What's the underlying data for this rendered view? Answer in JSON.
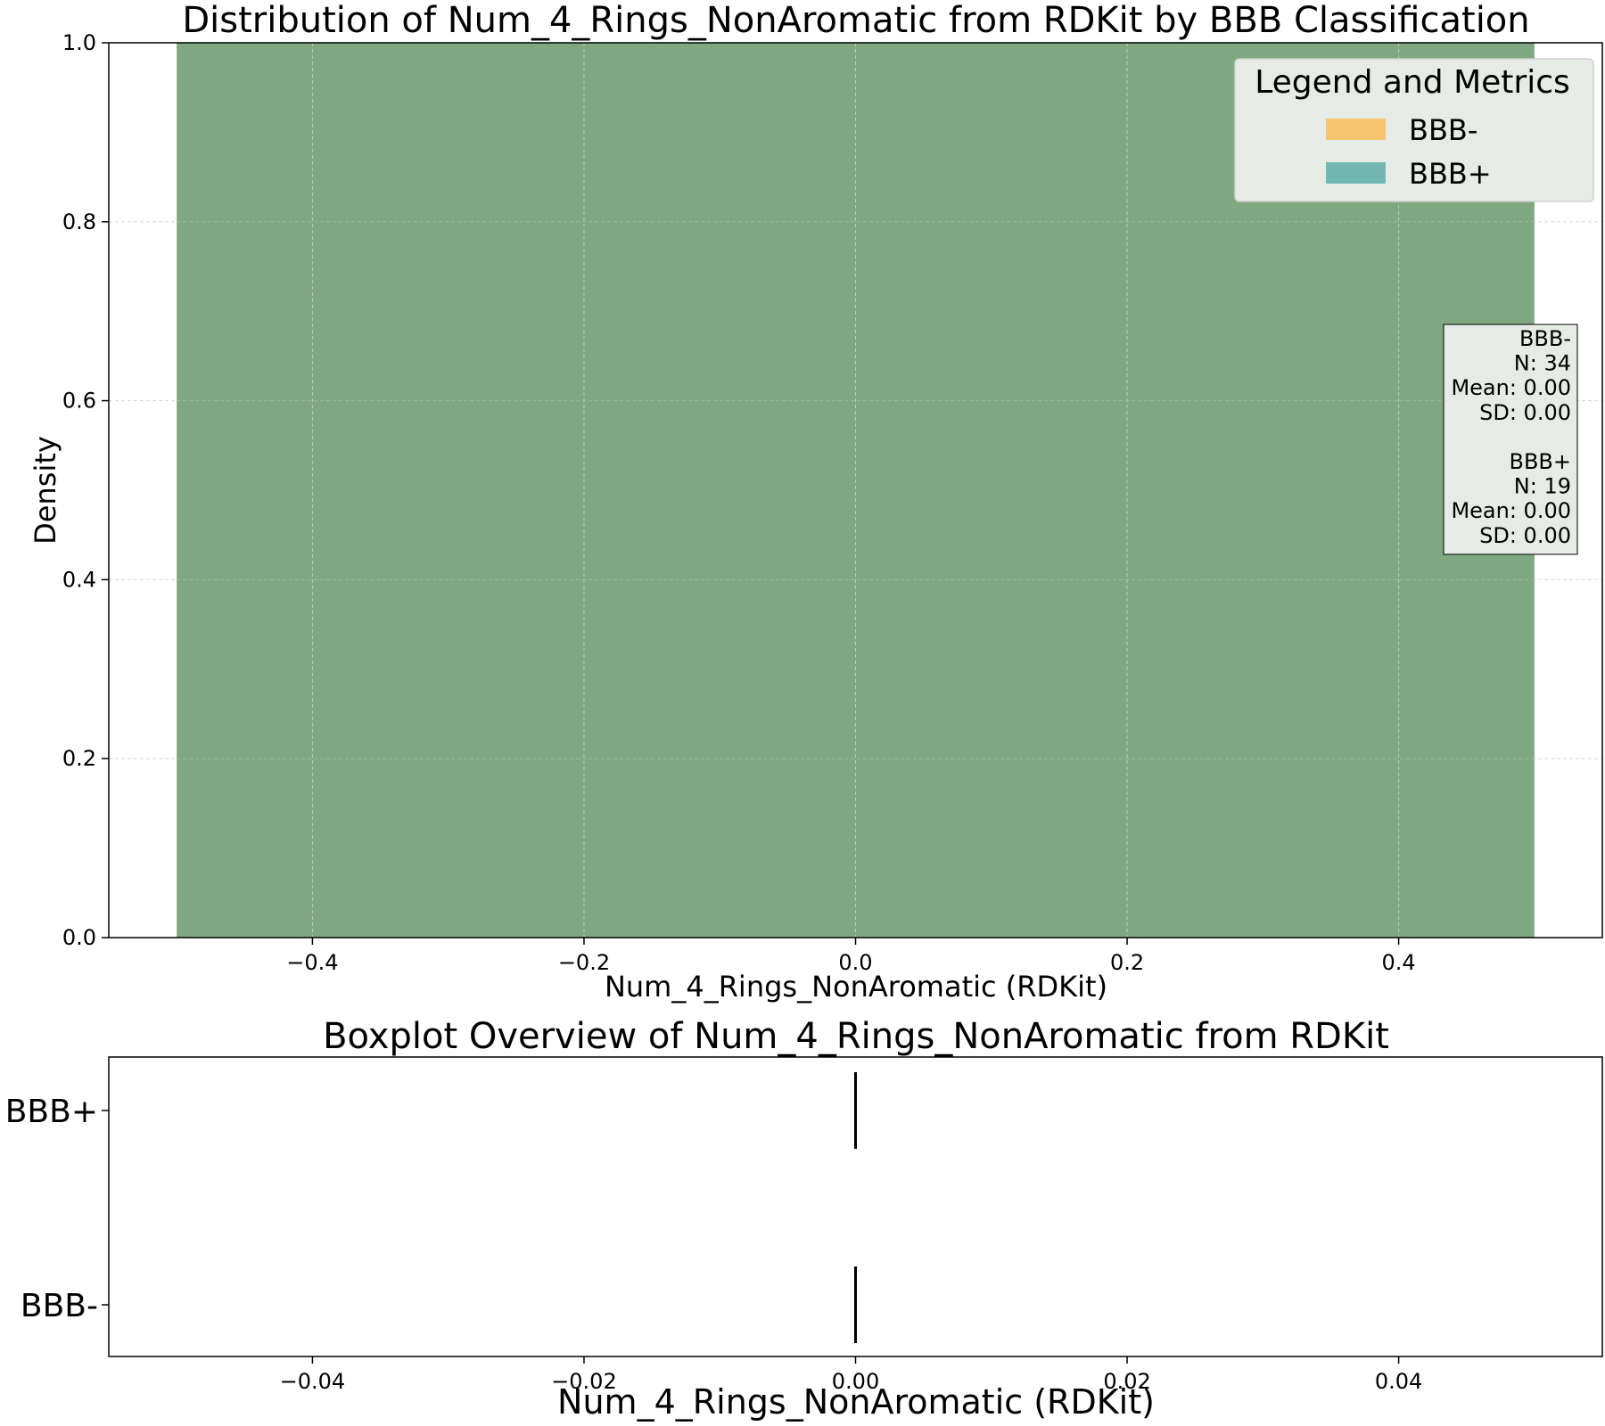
{
  "chart_data": [
    {
      "type": "histogram",
      "title": "Distribution of Num_4_Rings_NonAromatic from RDKit by BBB Classification",
      "xlabel": "Num_4_Rings_NonAromatic (RDKit)",
      "ylabel": "Density",
      "xlim": [
        -0.55,
        0.55
      ],
      "ylim": [
        0,
        1.0
      ],
      "x_ticks": [
        -0.4,
        -0.2,
        0.0,
        0.2,
        0.4
      ],
      "x_tick_labels": [
        "−0.4",
        "−0.2",
        "0.0",
        "0.2",
        "0.4"
      ],
      "y_ticks": [
        0.0,
        0.2,
        0.4,
        0.6,
        0.8,
        1.0
      ],
      "y_tick_labels": [
        "0.0",
        "0.2",
        "0.4",
        "0.6",
        "0.8",
        "1.0"
      ],
      "grid": true,
      "legend": {
        "title": "Legend and Metrics",
        "placement": "top-right",
        "entries": [
          {
            "label": "BBB-",
            "color": "#f5c46e"
          },
          {
            "label": "BBB+",
            "color": "#73b7b2"
          }
        ]
      },
      "series": [
        {
          "name": "BBB-",
          "color": "#f5c46e",
          "bins": [
            {
              "x0": -0.5,
              "x1": 0.5,
              "density": 1.0
            }
          ]
        },
        {
          "name": "BBB+",
          "color": "#73b7b2",
          "bins": [
            {
              "x0": -0.5,
              "x1": 0.5,
              "density": 1.0
            }
          ]
        }
      ],
      "overlap_color": "#80a880",
      "metrics_box": {
        "placement": "right",
        "lines": [
          "BBB-",
          "N: 34",
          "Mean: 0.00",
          "SD: 0.00",
          "",
          "BBB+",
          "N: 19",
          "Mean: 0.00",
          "SD: 0.00"
        ]
      }
    },
    {
      "type": "boxplot",
      "title": "Boxplot Overview of Num_4_Rings_NonAromatic from RDKit",
      "xlabel": "Num_4_Rings_NonAromatic (RDKit)",
      "xlim": [
        -0.055,
        0.055
      ],
      "x_ticks": [
        -0.04,
        -0.02,
        0.0,
        0.02,
        0.04
      ],
      "x_tick_labels": [
        "−0.04",
        "−0.02",
        "0.00",
        "0.02",
        "0.04"
      ],
      "categories": [
        "BBB+",
        "BBB-"
      ],
      "boxes": [
        {
          "name": "BBB+",
          "min": 0,
          "q1": 0,
          "median": 0,
          "q3": 0,
          "max": 0
        },
        {
          "name": "BBB-",
          "min": 0,
          "q1": 0,
          "median": 0,
          "q3": 0,
          "max": 0
        }
      ]
    }
  ]
}
